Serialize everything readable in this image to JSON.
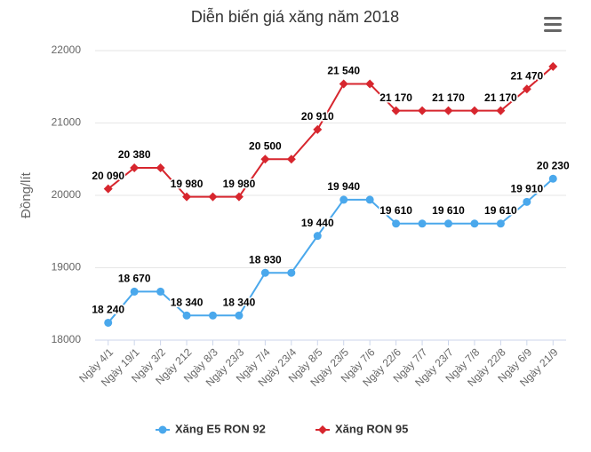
{
  "chart_data": {
    "type": "line",
    "title": "Diễn biến giá xăng năm 2018",
    "y_label": "Đồng/lít",
    "categories": [
      "Ngày 4/1",
      "Ngày 19/1",
      "Ngày 3/2",
      "Ngày 212",
      "Ngày 8/3",
      "Ngày 23/3",
      "Ngày 7/4",
      "Ngày 23/4",
      "Ngày 8/5",
      "Ngày 23/5",
      "Ngày 7/6",
      "Ngày 22/6",
      "Ngày 7/7",
      "Ngày 23/7",
      "Ngày 7/8",
      "Ngày 22/8",
      "Ngày 6/9",
      "Ngày 21/9"
    ],
    "series": [
      {
        "name": "Xăng E5 RON 92",
        "color": "#4aa8ec",
        "marker": "circle",
        "values": [
          18240,
          18670,
          18670,
          18340,
          18340,
          18340,
          18930,
          18930,
          19440,
          19940,
          19940,
          19610,
          19610,
          19610,
          19610,
          19610,
          19910,
          20230
        ],
        "value_labels": [
          "18 240",
          "18 670",
          null,
          "18 340",
          null,
          "18 340",
          "18 930",
          null,
          "19 440",
          "19 940",
          null,
          "19 610",
          null,
          "19 610",
          null,
          "19 610",
          "19 910",
          "20 230"
        ]
      },
      {
        "name": "Xăng RON 95",
        "color": "#d7262e",
        "marker": "diamond",
        "values": [
          20090,
          20380,
          20380,
          19980,
          19980,
          19980,
          20500,
          20500,
          20910,
          21540,
          21540,
          21170,
          21170,
          21170,
          21170,
          21170,
          21470,
          21780
        ],
        "value_labels": [
          "20 090",
          "20 380",
          null,
          "19 980",
          null,
          "19 980",
          "20 500",
          null,
          "20 910",
          "21 540",
          null,
          "21 170",
          null,
          "21 170",
          null,
          "21 170",
          "21 470",
          null
        ]
      }
    ],
    "ylim": [
      18000,
      22000
    ],
    "yticks": [
      18000,
      19000,
      20000,
      21000,
      22000
    ],
    "grid": true,
    "legend": "bottom"
  }
}
